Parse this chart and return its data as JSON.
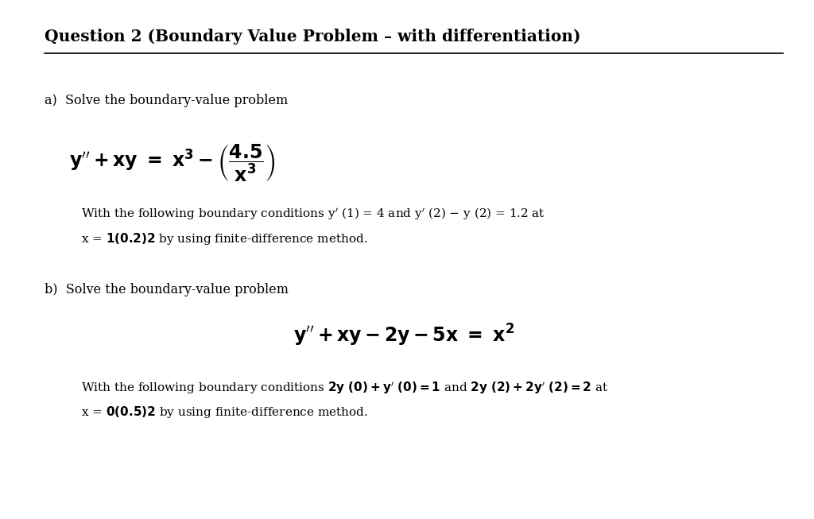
{
  "title": "Question 2 (Boundary Value Problem – with differentiation)",
  "bg_color": "#ffffff",
  "text_color": "#000000",
  "fig_width": 10.24,
  "fig_height": 6.53,
  "dpi": 100
}
